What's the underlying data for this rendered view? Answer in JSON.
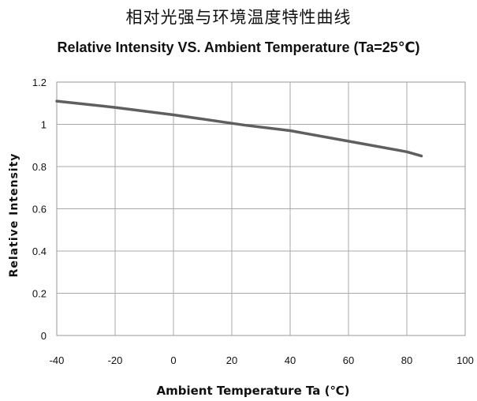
{
  "chart_data": {
    "type": "line",
    "title": "相对光强与环境温度特性曲线",
    "subtitle": "Relative Intensity VS. Ambient Temperature  (Ta=25℃)",
    "xlabel": "Ambient  Temperature  Ta (℃)",
    "ylabel": "Relative  Intensity",
    "xlim": [
      -40,
      100
    ],
    "ylim": [
      0,
      1.2
    ],
    "x_ticks": [
      "-40",
      "-20",
      "0",
      "20",
      "40",
      "60",
      "80",
      "100"
    ],
    "y_ticks": [
      "0",
      "0.2",
      "0.4",
      "0.6",
      "0.8",
      "1",
      "1.2"
    ],
    "grid": true,
    "series": [
      {
        "color": "#5f5f5f",
        "x": [
          -40,
          -20,
          0,
          20,
          25,
          40,
          60,
          80,
          85
        ],
        "y": [
          1.11,
          1.08,
          1.045,
          1.005,
          0.995,
          0.97,
          0.92,
          0.87,
          0.85
        ]
      }
    ]
  }
}
